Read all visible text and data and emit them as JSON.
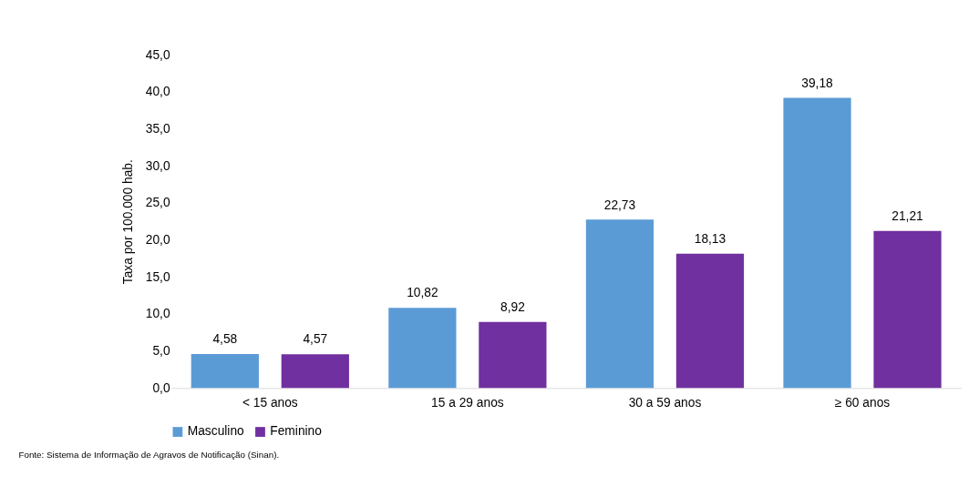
{
  "chart_data": {
    "type": "bar",
    "ylabel": "Taxa por 100.000 hab.",
    "categories": [
      "< 15 anos",
      "15 a 29 anos",
      "30 a 59 anos",
      "≥ 60 anos"
    ],
    "series": [
      {
        "name": "Masculino",
        "color": "#5b9bd5",
        "values": [
          4.58,
          10.82,
          22.73,
          39.18
        ],
        "value_labels": [
          "4,58",
          "10,82",
          "22,73",
          "39,18"
        ]
      },
      {
        "name": "Feminino",
        "color": "#7030a0",
        "values": [
          4.57,
          8.92,
          18.13,
          21.21
        ],
        "value_labels": [
          "4,57",
          "8,92",
          "18,13",
          "21,21"
        ]
      }
    ],
    "ylim": [
      0,
      45
    ],
    "yticks": [
      {
        "value": 0,
        "label": "0,0"
      },
      {
        "value": 5,
        "label": "5,0"
      },
      {
        "value": 10,
        "label": "10,0"
      },
      {
        "value": 15,
        "label": "15,0"
      },
      {
        "value": 20,
        "label": "20,0"
      },
      {
        "value": 25,
        "label": "25,0"
      },
      {
        "value": 30,
        "label": "30,0"
      },
      {
        "value": 35,
        "label": "35,0"
      },
      {
        "value": 40,
        "label": "40,0"
      },
      {
        "value": 45,
        "label": "45,0"
      }
    ],
    "grid": false,
    "legend": "bottom",
    "annotations": [
      "Fonte: Sistema de Informação de Agravos de Notificação (Sinan)."
    ]
  }
}
